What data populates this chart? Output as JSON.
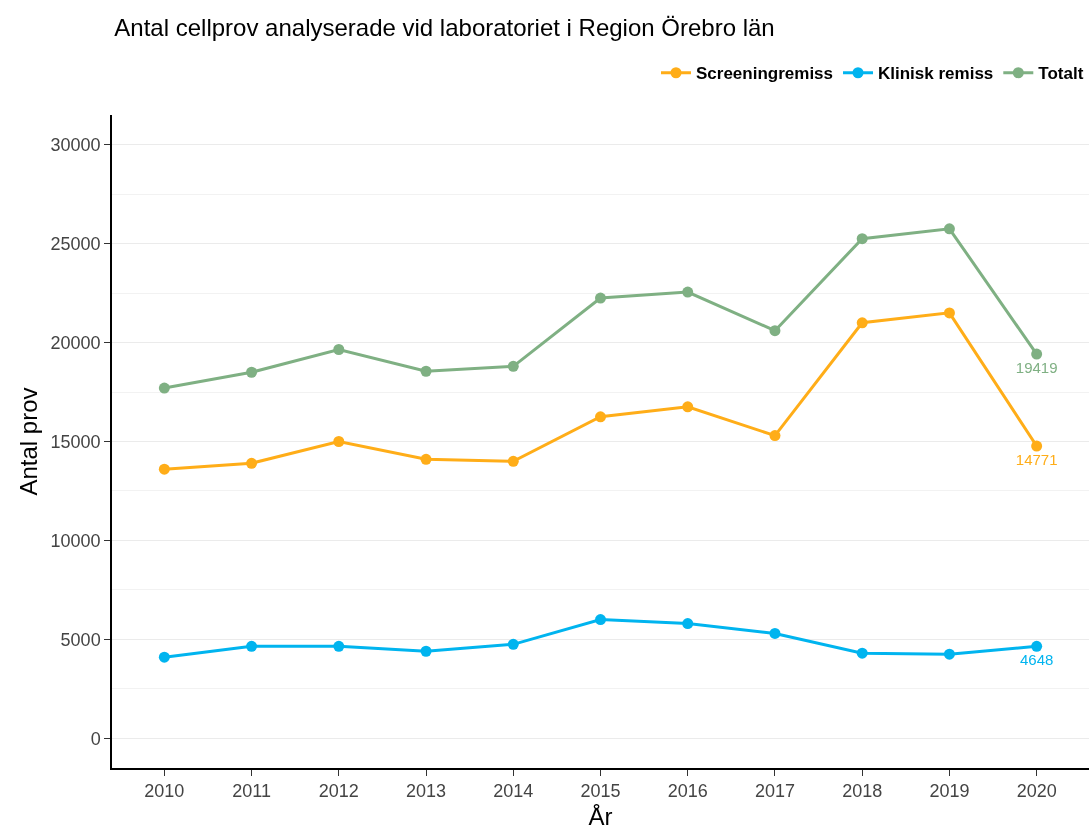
{
  "chart_data": {
    "type": "line",
    "title": "Antal cellprov analyserade vid laboratoriet i Region Örebro län",
    "xlabel": "År",
    "ylabel": "Antal prov",
    "x": [
      2010,
      2011,
      2012,
      2013,
      2014,
      2015,
      2016,
      2017,
      2018,
      2019,
      2020
    ],
    "xlim": [
      2009.4,
      2020.6
    ],
    "xticks": [
      2010,
      2011,
      2012,
      2013,
      2014,
      2015,
      2016,
      2017,
      2018,
      2019,
      2020
    ],
    "ylim": [
      -1500,
      31500
    ],
    "yticks": [
      0,
      5000,
      10000,
      15000,
      20000,
      25000,
      30000
    ],
    "grid": "y",
    "legend": "top right",
    "marker": "circle",
    "line_style": "solid",
    "series": [
      {
        "name": "Screeningremiss",
        "color": "#ffad18",
        "values": [
          13600,
          13900,
          15000,
          14100,
          14000,
          16250,
          16750,
          15300,
          21000,
          21500,
          14771
        ],
        "value_labels": [
          null,
          null,
          null,
          null,
          null,
          null,
          null,
          null,
          null,
          null,
          "14771"
        ]
      },
      {
        "name": "Klinisk remiss",
        "color": "#00b4ef",
        "values": [
          4100,
          4650,
          4650,
          4400,
          4750,
          6000,
          5800,
          5300,
          4300,
          4250,
          4648
        ],
        "value_labels": [
          null,
          null,
          null,
          null,
          null,
          null,
          null,
          null,
          null,
          null,
          "4648"
        ]
      },
      {
        "name": "Totalt",
        "color": "#7fb083",
        "values": [
          17700,
          18500,
          19650,
          18550,
          18800,
          22250,
          22550,
          20600,
          25250,
          25750,
          19419
        ],
        "value_labels": [
          null,
          null,
          null,
          null,
          null,
          null,
          null,
          null,
          null,
          null,
          "19419"
        ]
      }
    ]
  }
}
